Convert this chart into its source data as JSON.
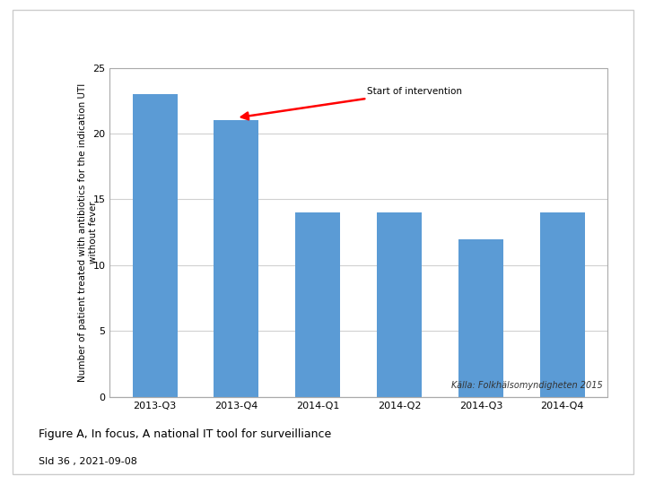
{
  "categories": [
    "2013-Q3",
    "2013-Q4",
    "2014-Q1",
    "2014-Q2",
    "2014-Q3",
    "2014-Q4"
  ],
  "values": [
    23,
    21,
    14,
    14,
    12,
    14
  ],
  "bar_color": "#5b9bd5",
  "ylim": [
    0,
    25
  ],
  "yticks": [
    0,
    5,
    10,
    15,
    20,
    25
  ],
  "ylabel_line1": "Number of patient treated with antibiotics for the indication UTI",
  "ylabel_line2": "without fever",
  "annotation_text": "Start of intervention",
  "source_text": "Källa: Folkhälsomyndigheten 2015",
  "figure_caption": "Figure A, In focus, A national IT tool for surveilliance",
  "slide_info": "Sld 36 , 2021-09-08",
  "background_color": "#f0f0f0",
  "slide_background": "#ffffff",
  "plot_background": "#ffffff",
  "grid_color": "#d0d0d0",
  "border_color": "#aaaaaa"
}
